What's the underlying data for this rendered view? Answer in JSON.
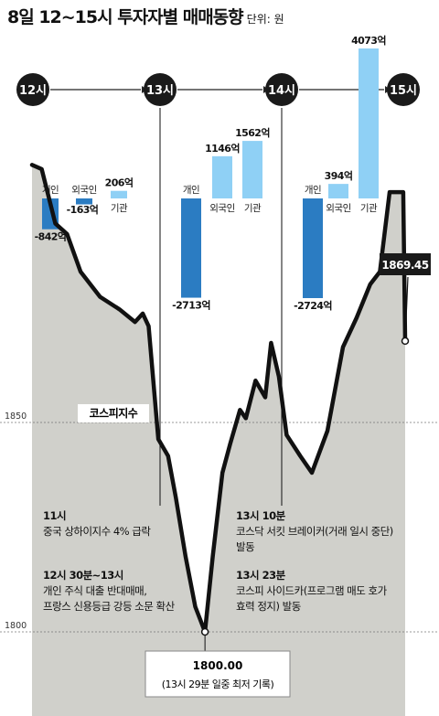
{
  "title": "8일 12~15시 투자자별 매매동향",
  "unit": "단위: 원",
  "timeline": [
    "12시",
    "13시",
    "14시",
    "15시"
  ],
  "chart_data": [
    {
      "type": "bar",
      "title": "8일 12~15시 투자자별 매매동향",
      "unit": "원",
      "groups": [
        {
          "period": "12시~13시",
          "bars": [
            {
              "name": "개인",
              "value": -842,
              "label": "-842억"
            },
            {
              "name": "외국인",
              "value": -163,
              "label": "-163억"
            },
            {
              "name": "기관",
              "value": 206,
              "label": "206억"
            }
          ]
        },
        {
          "period": "13시~14시",
          "bars": [
            {
              "name": "개인",
              "value": -2713,
              "label": "-2713억"
            },
            {
              "name": "외국인",
              "value": 1146,
              "label": "1146억"
            },
            {
              "name": "기관",
              "value": 1562,
              "label": "1562억"
            }
          ]
        },
        {
          "period": "14시~15시",
          "bars": [
            {
              "name": "개인",
              "value": -2724,
              "label": "-2724억"
            },
            {
              "name": "외국인",
              "value": 394,
              "label": "394억"
            },
            {
              "name": "기관",
              "value": 4073,
              "label": "4073억"
            }
          ]
        }
      ],
      "colors": {
        "negative": "#2b7cc2",
        "positive": "#8fd0f5"
      }
    },
    {
      "type": "area",
      "series_label": "코스피지수",
      "x_range": [
        "12:00",
        "15:00"
      ],
      "y_ticks": [
        {
          "value": 1850,
          "label": "1850"
        },
        {
          "value": 1800,
          "label": "1800"
        }
      ],
      "ylim": [
        1787,
        1937
      ],
      "points": [
        {
          "t": "12:00",
          "y": 1911.5
        },
        {
          "t": "12:05",
          "y": 1910.5
        },
        {
          "t": "12:12",
          "y": 1897.5
        },
        {
          "t": "12:18",
          "y": 1895
        },
        {
          "t": "12:25",
          "y": 1886
        },
        {
          "t": "12:35",
          "y": 1880
        },
        {
          "t": "12:45",
          "y": 1877
        },
        {
          "t": "12:53",
          "y": 1874
        },
        {
          "t": "12:57",
          "y": 1876
        },
        {
          "t": "13:00",
          "y": 1873
        },
        {
          "t": "13:05",
          "y": 1846
        },
        {
          "t": "13:10",
          "y": 1842
        },
        {
          "t": "13:14",
          "y": 1832
        },
        {
          "t": "13:19",
          "y": 1818
        },
        {
          "t": "13:24",
          "y": 1806
        },
        {
          "t": "13:29",
          "y": 1800.0
        },
        {
          "t": "13:33",
          "y": 1818
        },
        {
          "t": "13:38",
          "y": 1838
        },
        {
          "t": "13:42",
          "y": 1845
        },
        {
          "t": "13:47",
          "y": 1853
        },
        {
          "t": "13:50",
          "y": 1851
        },
        {
          "t": "13:55",
          "y": 1860
        },
        {
          "t": "14:00",
          "y": 1856
        },
        {
          "t": "14:03",
          "y": 1869
        },
        {
          "t": "14:07",
          "y": 1861
        },
        {
          "t": "14:11",
          "y": 1847
        },
        {
          "t": "14:18",
          "y": 1842
        },
        {
          "t": "14:24",
          "y": 1838
        },
        {
          "t": "14:32",
          "y": 1848
        },
        {
          "t": "14:40",
          "y": 1868
        },
        {
          "t": "14:47",
          "y": 1875
        },
        {
          "t": "14:54",
          "y": 1883
        },
        {
          "t": "14:59",
          "y": 1886
        },
        {
          "t": "15:04",
          "y": 1905
        },
        {
          "t": "15:11",
          "y": 1905
        },
        {
          "t": "15:12",
          "y": 1869.45
        }
      ],
      "callouts": {
        "close": "1869.45",
        "low_value": "1800.00",
        "low_note": "(13시 29분 일중 최저 기록)"
      },
      "colors": {
        "fill": "#d0d0cb",
        "line": "#111111"
      }
    }
  ],
  "annotations": [
    {
      "time": "11시",
      "text": [
        "중국 상하이지수 4% 급락"
      ]
    },
    {
      "time": "12시 30분~13시",
      "text": [
        "개인 주식 대출 반대매매,",
        "프랑스 신용등급 강등 소문 확산"
      ]
    },
    {
      "time": "13시 10분",
      "text": [
        "코스닥 서킷 브레이커(거래 일시 중단)",
        "발동"
      ]
    },
    {
      "time": "13시 23분",
      "text": [
        "코스피 사이드카(프로그램 매도 호가",
        "효력 정지) 발동"
      ]
    }
  ]
}
